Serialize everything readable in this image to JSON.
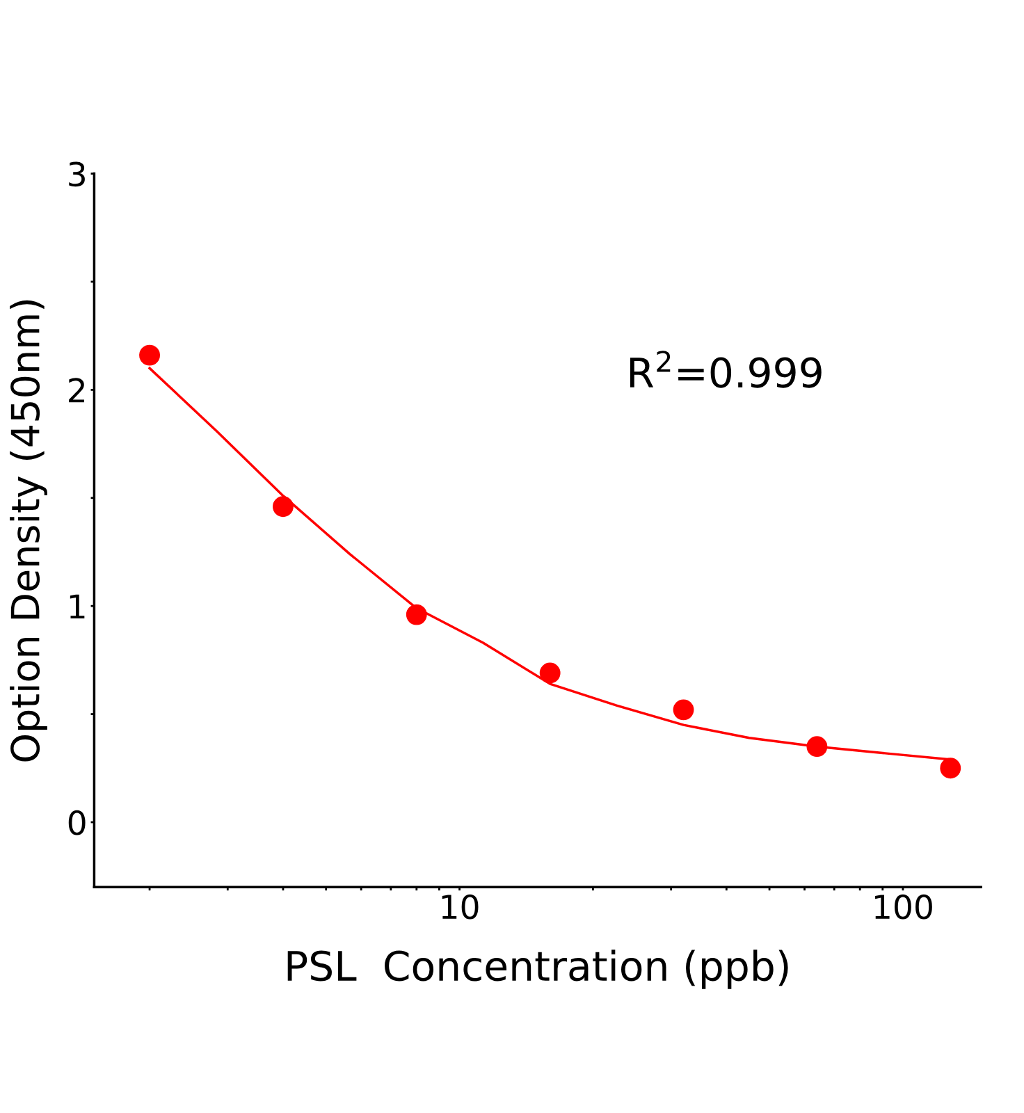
{
  "chart_data": {
    "type": "scatter",
    "xlabel": "PSL  Concentration (ppb)",
    "ylabel": "Option Density (450nm)",
    "x": [
      2,
      4,
      8,
      16,
      32,
      64,
      128
    ],
    "series": [
      {
        "color": "#ff0000",
        "marker": "circle",
        "values": [
          2.16,
          1.46,
          0.96,
          0.69,
          0.52,
          0.35,
          0.25
        ]
      },
      {
        "type": "line",
        "color": "#ff0000",
        "line_style": "solid",
        "x": [
          2,
          2.83,
          4,
          5.66,
          8,
          11.3,
          16,
          22.6,
          32,
          45,
          64,
          90,
          128
        ],
        "values": [
          2.1,
          1.81,
          1.51,
          1.24,
          0.99,
          0.83,
          0.64,
          0.54,
          0.45,
          0.39,
          0.35,
          0.32,
          0.29
        ]
      }
    ],
    "log": "x",
    "xlim": [
      1.5,
      150
    ],
    "ylim": [
      -0.3,
      3
    ],
    "xticks": [
      {
        "value": 2,
        "label": null
      },
      {
        "value": 3,
        "label": null
      },
      {
        "value": 4,
        "label": null
      },
      {
        "value": 5,
        "label": null
      },
      {
        "value": 6,
        "label": null
      },
      {
        "value": 7,
        "label": null
      },
      {
        "value": 8,
        "label": null
      },
      {
        "value": 9,
        "label": null
      },
      10,
      {
        "value": 20,
        "label": null
      },
      {
        "value": 30,
        "label": null
      },
      {
        "value": 40,
        "label": null
      },
      {
        "value": 50,
        "label": null
      },
      {
        "value": 60,
        "label": null
      },
      {
        "value": 70,
        "label": null
      },
      {
        "value": 80,
        "label": null
      },
      {
        "value": 90,
        "label": null
      },
      100
    ],
    "yticks": [
      0,
      {
        "value": 0.5,
        "label": null
      },
      1,
      {
        "value": 1.5,
        "label": null
      },
      2,
      {
        "value": 2.5,
        "label": null
      },
      3
    ],
    "annotations": [
      "R$^{2}$=0.999"
    ],
    "grid": false,
    "legend": false
  }
}
